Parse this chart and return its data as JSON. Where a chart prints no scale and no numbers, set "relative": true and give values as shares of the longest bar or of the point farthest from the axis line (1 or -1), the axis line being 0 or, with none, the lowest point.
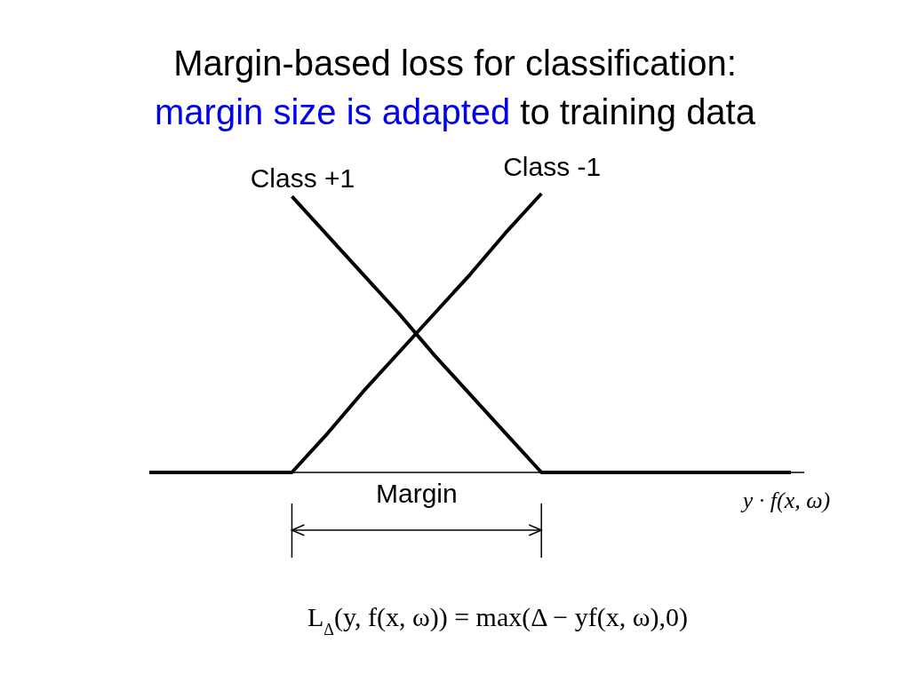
{
  "chart_data": {
    "type": "line",
    "title": "Margin-based loss for classification:",
    "subtitle": "margin size is adapted to training data",
    "xlabel": "y · f(x, ω)",
    "relative": true,
    "categories": [
      null,
      null,
      null,
      null,
      null,
      null,
      null,
      null,
      null,
      null,
      null,
      null,
      null,
      null,
      null,
      null,
      null,
      null,
      null
    ],
    "series": [
      {
        "name": "Class +1",
        "color": "#000000",
        "values": [
          null,
          null,
          null,
          null,
          0.99,
          0.85,
          0.71,
          0.57,
          0.42,
          0.28,
          0.14,
          0,
          0,
          0,
          0,
          0,
          0,
          0,
          0
        ]
      },
      {
        "name": "Class -1",
        "color": "#000000",
        "values": [
          0,
          0,
          0,
          0,
          0,
          0.14,
          0.29,
          0.43,
          0.57,
          0.71,
          0.86,
          1,
          null,
          null,
          null,
          null,
          null,
          null,
          null
        ]
      }
    ],
    "annotations": [
      "Margin",
      "L$_{Δ}$(y, f(x, ω)) = max(Δ − yf(x, ω),0)"
    ]
  }
}
